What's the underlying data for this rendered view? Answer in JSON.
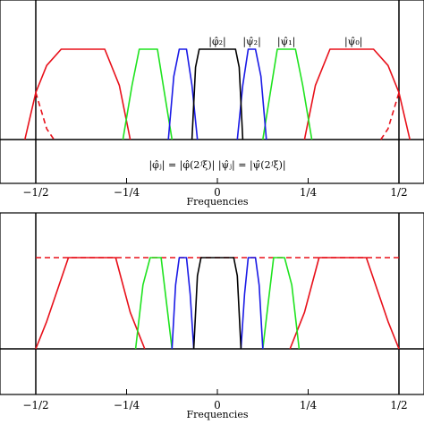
{
  "chart_data": [
    {
      "type": "line",
      "title": "",
      "xlabel": "Frequencies",
      "ylabel": "",
      "xlim": [
        -0.53,
        0.53
      ],
      "ylim": [
        -0.05,
        1.1
      ],
      "xtick_labels": [
        "−1/2",
        "−1/4",
        "0",
        "1/4",
        "1/2"
      ],
      "xtick_values": [
        -0.5,
        -0.25,
        0,
        0.25,
        0.5
      ],
      "grid": false,
      "annotations": [
        {
          "text": "|φ̂₂|",
          "x": 0.0
        },
        {
          "text": "|ψ̂₂|",
          "x": 0.095
        },
        {
          "text": "|ψ̂₁|",
          "x": 0.19
        },
        {
          "text": "|ψ̂₀|",
          "x": 0.375
        },
        {
          "text": "|φ̂ⱼ| = |φ̂(2ʲξ)|    |ψ̂ⱼ| = |ψ̂(2ʲξ)|",
          "x": 0.0
        }
      ],
      "series": [
        {
          "color": "#e8101a",
          "style": "solid",
          "segments": [
            [
              [
                -0.53,
                0
              ],
              [
                -0.5,
                0.52
              ],
              [
                -0.47,
                0.82
              ],
              [
                -0.43,
                1
              ],
              [
                -0.31,
                1
              ],
              [
                -0.27,
                0.6
              ],
              [
                -0.24,
                0
              ]
            ],
            [
              [
                0.24,
                0
              ],
              [
                0.27,
                0.6
              ],
              [
                0.31,
                1
              ],
              [
                0.43,
                1
              ],
              [
                0.47,
                0.82
              ],
              [
                0.5,
                0.52
              ],
              [
                0.53,
                0
              ]
            ]
          ]
        },
        {
          "color": "#e8101a",
          "style": "dashed",
          "segments": [
            [
              [
                -0.5,
                0.52
              ],
              [
                -0.485,
                0.32
              ],
              [
                -0.47,
                0.12
              ],
              [
                -0.45,
                0
              ]
            ],
            [
              [
                0.45,
                0
              ],
              [
                0.47,
                0.12
              ],
              [
                0.485,
                0.32
              ],
              [
                0.5,
                0.52
              ]
            ]
          ]
        },
        {
          "color": "#1fe31f",
          "style": "solid",
          "segments": [
            [
              [
                -0.26,
                0
              ],
              [
                -0.235,
                0.6
              ],
              [
                -0.215,
                1
              ],
              [
                -0.165,
                1
              ],
              [
                -0.145,
                0.5
              ],
              [
                -0.125,
                0
              ]
            ],
            [
              [
                0.125,
                0
              ],
              [
                0.145,
                0.5
              ],
              [
                0.165,
                1
              ],
              [
                0.215,
                1
              ],
              [
                0.235,
                0.6
              ],
              [
                0.26,
                0
              ]
            ]
          ]
        },
        {
          "color": "#1a1ae6",
          "style": "solid",
          "segments": [
            [
              [
                -0.135,
                0
              ],
              [
                -0.12,
                0.7
              ],
              [
                -0.105,
                1
              ],
              [
                -0.085,
                1
              ],
              [
                -0.07,
                0.6
              ],
              [
                -0.055,
                0
              ]
            ],
            [
              [
                0.055,
                0
              ],
              [
                0.07,
                0.6
              ],
              [
                0.085,
                1
              ],
              [
                0.105,
                1
              ],
              [
                0.12,
                0.7
              ],
              [
                0.135,
                0
              ]
            ]
          ]
        },
        {
          "color": "#000000",
          "style": "solid",
          "segments": [
            [
              [
                -0.07,
                0
              ],
              [
                -0.06,
                0.8
              ],
              [
                -0.05,
                1
              ],
              [
                0.05,
                1
              ],
              [
                0.06,
                0.8
              ],
              [
                0.07,
                0
              ]
            ]
          ]
        }
      ]
    },
    {
      "type": "line",
      "title": "",
      "xlabel": "Frequencies",
      "ylabel": "",
      "xlim": [
        -0.53,
        0.53
      ],
      "ylim": [
        -0.05,
        1.1
      ],
      "xtick_labels": [
        "−1/2",
        "−1/4",
        "0",
        "1/4",
        "1/2"
      ],
      "xtick_values": [
        -0.5,
        -0.25,
        0,
        0.25,
        0.5
      ],
      "grid": false,
      "series": [
        {
          "color": "#e8101a",
          "style": "dashed",
          "segments": [
            [
              [
                -0.5,
                1
              ],
              [
                0.5,
                1
              ]
            ]
          ]
        },
        {
          "color": "#e8101a",
          "style": "solid",
          "segments": [
            [
              [
                -0.5,
                0
              ],
              [
                -0.47,
                0.3
              ],
              [
                -0.41,
                1
              ],
              [
                -0.28,
                1
              ],
              [
                -0.24,
                0.4
              ],
              [
                -0.2,
                0
              ]
            ],
            [
              [
                0.2,
                0
              ],
              [
                0.24,
                0.4
              ],
              [
                0.28,
                1
              ],
              [
                0.41,
                1
              ],
              [
                0.47,
                0.3
              ],
              [
                0.5,
                0
              ]
            ]
          ]
        },
        {
          "color": "#1fe31f",
          "style": "solid",
          "segments": [
            [
              [
                -0.225,
                0
              ],
              [
                -0.205,
                0.7
              ],
              [
                -0.185,
                1
              ],
              [
                -0.155,
                1
              ],
              [
                -0.14,
                0.5
              ],
              [
                -0.125,
                0
              ]
            ],
            [
              [
                0.125,
                0
              ],
              [
                0.14,
                0.5
              ],
              [
                0.155,
                1
              ],
              [
                0.185,
                1
              ],
              [
                0.205,
                0.7
              ],
              [
                0.225,
                0
              ]
            ]
          ]
        },
        {
          "color": "#1a1ae6",
          "style": "solid",
          "segments": [
            [
              [
                -0.125,
                0
              ],
              [
                -0.115,
                0.7
              ],
              [
                -0.105,
                1
              ],
              [
                -0.085,
                1
              ],
              [
                -0.075,
                0.6
              ],
              [
                -0.065,
                0
              ]
            ],
            [
              [
                0.065,
                0
              ],
              [
                0.075,
                0.6
              ],
              [
                0.085,
                1
              ],
              [
                0.105,
                1
              ],
              [
                0.115,
                0.7
              ],
              [
                0.125,
                0
              ]
            ]
          ]
        },
        {
          "color": "#000000",
          "style": "solid",
          "segments": [
            [
              [
                -0.065,
                0
              ],
              [
                -0.055,
                0.8
              ],
              [
                -0.045,
                1
              ],
              [
                0.045,
                1
              ],
              [
                0.055,
                0.8
              ],
              [
                0.065,
                0
              ]
            ]
          ]
        }
      ]
    }
  ]
}
